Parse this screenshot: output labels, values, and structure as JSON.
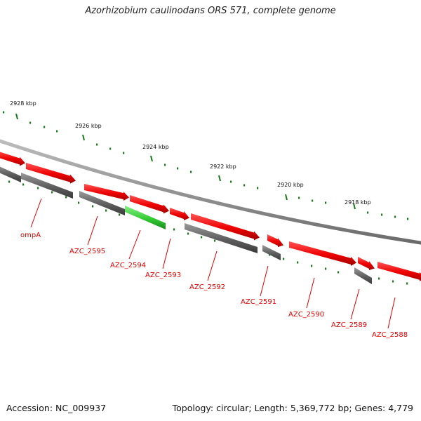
{
  "title": "Azorhizobium caulinodans ORS 571, complete genome",
  "footer": {
    "accession": "Accession: NC_009937",
    "summary": "Topology: circular; Length: 5,369,772 bp; Genes: 4,779"
  },
  "colors": {
    "forward_gene": "#e00000",
    "reverse_gene": "#5a5a5a",
    "highlighted_gene": "#33cc33",
    "tick": "#1a7a1a",
    "label": "#e00000"
  },
  "ruler_labels": [
    "2928 kbp",
    "2926 kbp",
    "2924 kbp",
    "2922 kbp",
    "2920 kbp",
    "2918 kbp"
  ],
  "gene_labels": [
    "ompA",
    "AZC_2595",
    "AZC_2594",
    "AZC_2593",
    "AZC_2592",
    "AZC_2591",
    "AZC_2590",
    "AZC_2589",
    "AZC_2588"
  ]
}
